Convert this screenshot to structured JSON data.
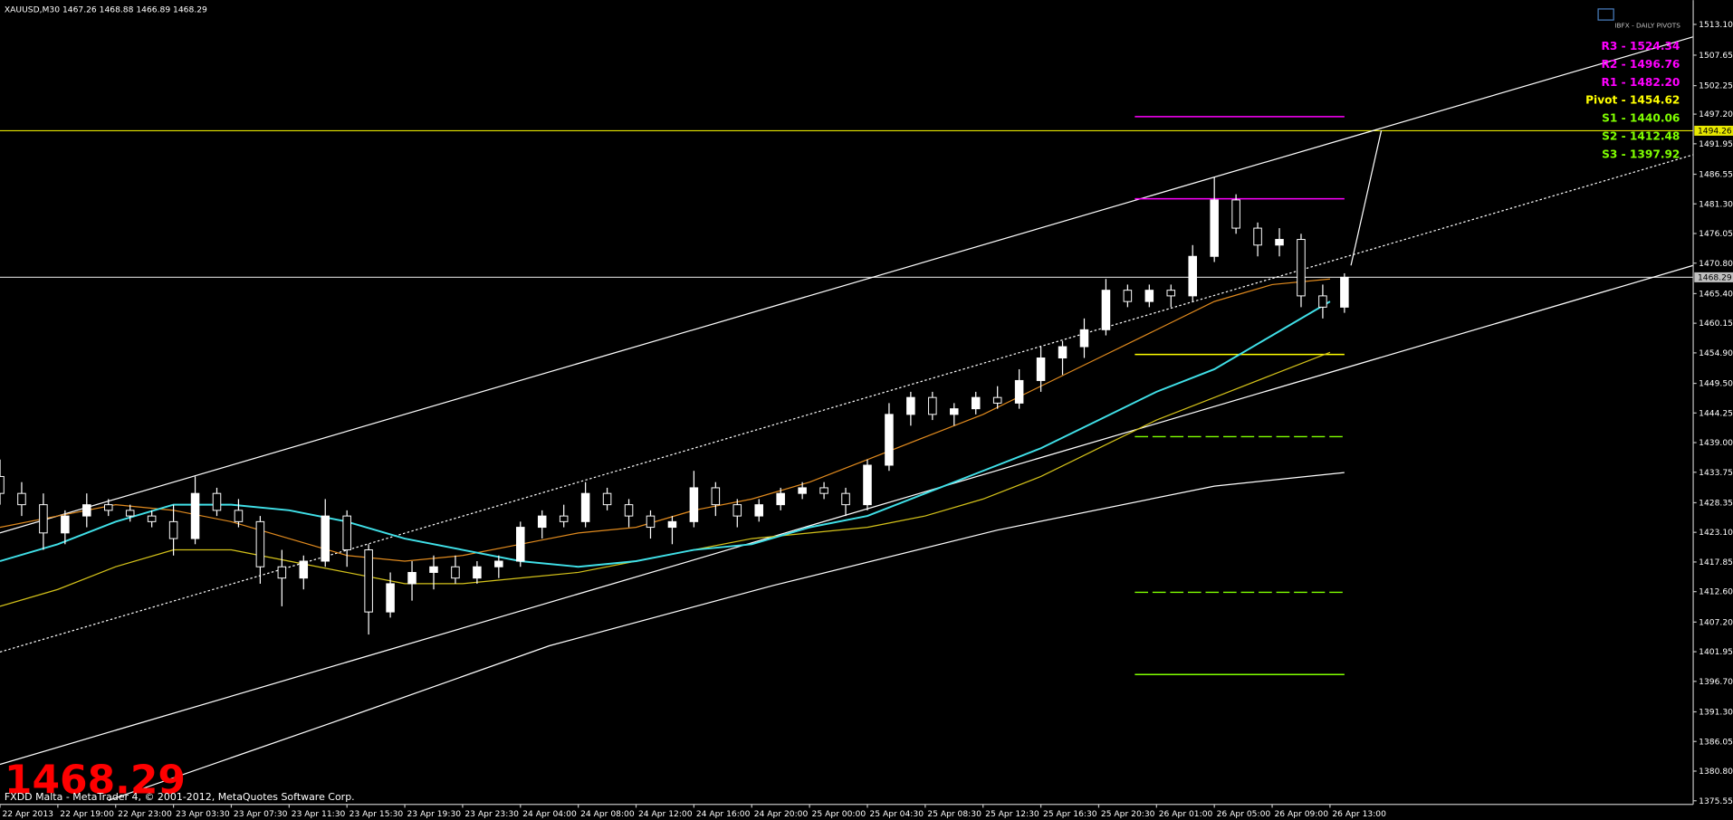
{
  "chart_data": {
    "type": "candlestick",
    "title": "XAUUSD,M30  1467.26 1468.88 1466.89 1468.29",
    "last_price": 1468.29,
    "copyright": "FXDD Malta - MetaTrader 4, © 2001-2012, MetaQuotes Software Corp.",
    "xlim": [
      0,
      234.25
    ],
    "ylim": [
      1374.9,
      1517.4
    ],
    "yticks": [
      {
        "value": 1513.1,
        "label": "1513.10"
      },
      1507.65,
      1502.25,
      {
        "value": 1497.2,
        "label": "1497.20"
      },
      1491.95,
      1486.55,
      {
        "value": 1481.3,
        "label": "1481.30"
      },
      1476.05,
      {
        "value": 1470.8,
        "label": "1470.80"
      },
      {
        "value": 1465.4,
        "label": "1465.40"
      },
      1460.15,
      {
        "value": 1454.9,
        "label": "1454.90"
      },
      {
        "value": 1449.5,
        "label": "1449.50"
      },
      1444.25,
      {
        "value": 1439,
        "label": "1439.00"
      },
      1433.75,
      1428.35,
      {
        "value": 1423.1,
        "label": "1423.10"
      },
      1417.85,
      {
        "value": 1412.6,
        "label": "1412.60"
      },
      {
        "value": 1407.2,
        "label": "1407.20"
      },
      1401.95,
      {
        "value": 1396.7,
        "label": "1396.70"
      },
      {
        "value": 1391.3,
        "label": "1391.30"
      },
      1386.05,
      {
        "value": 1380.8,
        "label": "1380.80"
      },
      1375.55
    ],
    "xticks": [
      {
        "value": 0,
        "label": "22 Apr 2013"
      },
      {
        "value": 8,
        "label": "22 Apr 19:00"
      },
      {
        "value": 16,
        "label": "22 Apr 23:00"
      },
      {
        "value": 24,
        "label": "23 Apr 03:30"
      },
      {
        "value": 32,
        "label": "23 Apr 07:30"
      },
      {
        "value": 40,
        "label": "23 Apr 11:30"
      },
      {
        "value": 48,
        "label": "23 Apr 15:30"
      },
      {
        "value": 56,
        "label": "23 Apr 19:30"
      },
      {
        "value": 64,
        "label": "23 Apr 23:30"
      },
      {
        "value": 72,
        "label": "24 Apr 04:00"
      },
      {
        "value": 80,
        "label": "24 Apr 08:00"
      },
      {
        "value": 88,
        "label": "24 Apr 12:00"
      },
      {
        "value": 96,
        "label": "24 Apr 16:00"
      },
      {
        "value": 104,
        "label": "24 Apr 20:00"
      },
      {
        "value": 112,
        "label": "25 Apr 00:00"
      },
      {
        "value": 120,
        "label": "25 Apr 04:30"
      },
      {
        "value": 128,
        "label": "25 Apr 08:30"
      },
      {
        "value": 136,
        "label": "25 Apr 12:30"
      },
      {
        "value": 144,
        "label": "25 Apr 16:30"
      },
      {
        "value": 152,
        "label": "25 Apr 20:30"
      },
      {
        "value": 160,
        "label": "26 Apr 01:00"
      },
      {
        "value": 168,
        "label": "26 Apr 05:00"
      },
      {
        "value": 176,
        "label": "26 Apr 09:00"
      },
      {
        "value": 184,
        "label": "26 Apr 13:00"
      }
    ],
    "candles": {
      "x": [
        0,
        3,
        6,
        9,
        12,
        15,
        18,
        21,
        24,
        27,
        30,
        33,
        36,
        39,
        42,
        45,
        48,
        51,
        54,
        57,
        60,
        63,
        66,
        69,
        72,
        75,
        78,
        81,
        84,
        87,
        90,
        93,
        96,
        99,
        102,
        105,
        108,
        111,
        114,
        117,
        120,
        123,
        126,
        129,
        132,
        135,
        138,
        141,
        144,
        147,
        150,
        153,
        156,
        159,
        162,
        165,
        168,
        171,
        174,
        177,
        180,
        183,
        186
      ],
      "open": [
        1433,
        1430,
        1428,
        1423,
        1426,
        1428,
        1427,
        1426,
        1425,
        1422,
        1430,
        1427,
        1425,
        1417,
        1415,
        1418,
        1426,
        1420,
        1409,
        1414,
        1416,
        1417,
        1415,
        1417,
        1418,
        1424,
        1426,
        1425,
        1430,
        1428,
        1426,
        1424,
        1425,
        1431,
        1428,
        1426,
        1428,
        1430,
        1431,
        1430,
        1428,
        1435,
        1444,
        1447,
        1444,
        1445,
        1447,
        1446,
        1450,
        1454,
        1456,
        1459,
        1466,
        1464,
        1466,
        1465,
        1472,
        1482,
        1477,
        1474,
        1475,
        1465,
        1463
      ],
      "high": [
        1436,
        1432,
        1430,
        1427,
        1430,
        1429,
        1428,
        1427,
        1428,
        1433,
        1431,
        1429,
        1426,
        1420,
        1419,
        1429,
        1427,
        1421,
        1416,
        1418,
        1419,
        1419,
        1418,
        1419,
        1425,
        1427,
        1428,
        1432,
        1431,
        1429,
        1427,
        1426,
        1434,
        1432,
        1429,
        1429,
        1431,
        1432,
        1432,
        1431,
        1436,
        1446,
        1448,
        1448,
        1446,
        1448,
        1449,
        1452,
        1456,
        1457,
        1461,
        1468,
        1467,
        1467,
        1467,
        1474,
        1486,
        1483,
        1478,
        1477,
        1476,
        1467,
        1469
      ],
      "low": [
        1428,
        1426,
        1420,
        1421,
        1424,
        1426,
        1425,
        1424,
        1419,
        1421,
        1426,
        1424,
        1414,
        1410,
        1413,
        1417,
        1417,
        1405,
        1408,
        1411,
        1413,
        1414,
        1414,
        1415,
        1417,
        1422,
        1424,
        1424,
        1427,
        1424,
        1422,
        1421,
        1424,
        1426,
        1424,
        1425,
        1427,
        1429,
        1429,
        1426,
        1427,
        1434,
        1442,
        1443,
        1442,
        1444,
        1445,
        1445,
        1448,
        1451,
        1454,
        1458,
        1463,
        1463,
        1463,
        1464,
        1471,
        1476,
        1472,
        1472,
        1463,
        1461,
        1462
      ],
      "close": [
        1430,
        1428,
        1423,
        1426,
        1428,
        1427,
        1426,
        1425,
        1422,
        1430,
        1427,
        1425,
        1417,
        1415,
        1418,
        1426,
        1420,
        1409,
        1414,
        1416,
        1417,
        1415,
        1417,
        1418,
        1424,
        1426,
        1425,
        1430,
        1428,
        1426,
        1424,
        1425,
        1431,
        1428,
        1426,
        1428,
        1430,
        1431,
        1430,
        1428,
        1435,
        1444,
        1447,
        1444,
        1445,
        1447,
        1446,
        1450,
        1454,
        1456,
        1459,
        1466,
        1464,
        1466,
        1465,
        1472,
        1482,
        1477,
        1474,
        1475,
        1465,
        1463,
        1468.29
      ]
    },
    "series": [
      {
        "color": "#e08a1e",
        "x": [
          0,
          8,
          16,
          24,
          32,
          40,
          48,
          56,
          64,
          72,
          80,
          88,
          96,
          104,
          112,
          120,
          128,
          136,
          144,
          152,
          160,
          168,
          176,
          184
        ],
        "values": [
          1424,
          1426,
          1428,
          1427,
          1425,
          1422,
          1419,
          1418,
          1419,
          1421,
          1423,
          1424,
          1427,
          1429,
          1432,
          1436,
          1440,
          1444,
          1449,
          1454,
          1459,
          1464,
          1467,
          1468
        ]
      },
      {
        "color": "#d4c21a",
        "x": [
          0,
          8,
          16,
          24,
          32,
          40,
          48,
          56,
          64,
          72,
          80,
          88,
          96,
          104,
          112,
          120,
          128,
          136,
          144,
          152,
          160,
          168,
          176,
          184
        ],
        "values": [
          1410,
          1413,
          1417,
          1420,
          1420,
          1418,
          1416,
          1414,
          1414,
          1415,
          1416,
          1418,
          1420,
          1422,
          1423,
          1424,
          1426,
          1429,
          1433,
          1438,
          1443,
          1447,
          1451,
          1455
        ]
      },
      {
        "color": "#40e0e8",
        "x": [
          0,
          8,
          16,
          24,
          32,
          40,
          48,
          56,
          64,
          72,
          80,
          88,
          96,
          104,
          112,
          120,
          128,
          136,
          144,
          152,
          160,
          168,
          176,
          184
        ],
        "values": [
          1418,
          1421,
          1425,
          1428,
          1428,
          1427,
          1425,
          1422,
          1420,
          1418,
          1417,
          1418,
          1420,
          1421,
          1424,
          1426,
          1430,
          1434,
          1438,
          1443,
          1448,
          1452,
          1458,
          1464
        ]
      },
      {
        "color": "#ffffff",
        "x": [
          15,
          46,
          76,
          107,
          138,
          168,
          186
        ],
        "values": [
          1375.6,
          1389.4,
          1403,
          1413.7,
          1423.5,
          1431.3,
          1433.7
        ]
      }
    ],
    "trendlines": [
      {
        "color": "#ffffff",
        "dash": false,
        "x": [
          0,
          234.25
        ],
        "values": [
          1423,
          1510.9
        ]
      },
      {
        "color": "#ffffff",
        "dash": true,
        "x": [
          0,
          234.25
        ],
        "values": [
          1401.9,
          1490
        ]
      },
      {
        "color": "#ffffff",
        "dash": false,
        "x": [
          0,
          234.25
        ],
        "values": [
          1382,
          1470.4
        ]
      },
      {
        "color": "#ffffff",
        "dash": false,
        "x": [
          186.9,
          191.1
        ],
        "values": [
          1470.4,
          1494.3
        ]
      }
    ],
    "hlines": [
      {
        "value": 1494.26,
        "color": "#e8e800"
      },
      {
        "value": 1468.29,
        "color": "#c0c0c0"
      }
    ],
    "pivots": {
      "title": "IBFX - DAILY PIVOTS",
      "span": [
        157,
        186
      ],
      "levels": [
        {
          "label": "R3 - 1524.34",
          "value": 1524.34,
          "color": "#ff00ff",
          "dash": false
        },
        {
          "label": "R2 - 1496.76",
          "value": 1496.76,
          "color": "#ff00ff",
          "dash": false
        },
        {
          "label": "R1 - 1482.20",
          "value": 1482.2,
          "color": "#ff00ff",
          "dash": false
        },
        {
          "label": "Pivot - 1454.62",
          "value": 1454.62,
          "color": "#ffff00",
          "dash": false
        },
        {
          "label": "S1 - 1440.06",
          "value": 1440.06,
          "color": "#80ff00",
          "dash": true
        },
        {
          "label": "S2 - 1412.48",
          "value": 1412.48,
          "color": "#80ff00",
          "dash": true
        },
        {
          "label": "S3 - 1397.92",
          "value": 1397.92,
          "color": "#80ff00",
          "dash": false
        }
      ]
    }
  }
}
